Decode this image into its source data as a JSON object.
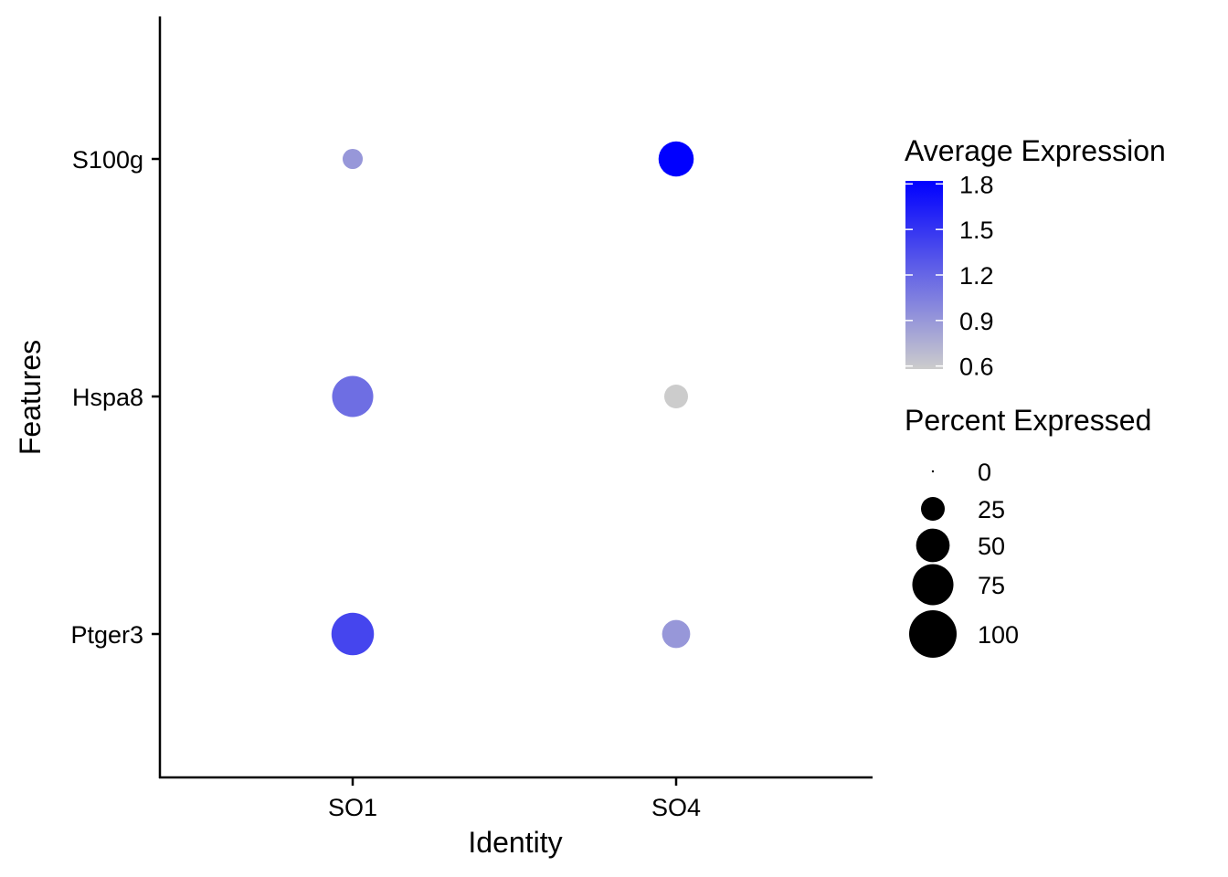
{
  "chart_data": {
    "type": "dotplot",
    "xlabel": "Identity",
    "ylabel": "Features",
    "x_categories": [
      "SO1",
      "SO4"
    ],
    "y_categories": [
      "S100g",
      "Hspa8",
      "Ptger3"
    ],
    "points": [
      {
        "feature": "S100g",
        "identity": "SO1",
        "avg_exp": 0.9,
        "pct_exp": 18
      },
      {
        "feature": "S100g",
        "identity": "SO4",
        "avg_exp": 1.82,
        "pct_exp": 55
      },
      {
        "feature": "Hspa8",
        "identity": "SO1",
        "avg_exp": 1.15,
        "pct_exp": 75
      },
      {
        "feature": "Hspa8",
        "identity": "SO4",
        "avg_exp": 0.58,
        "pct_exp": 25
      },
      {
        "feature": "Ptger3",
        "identity": "SO1",
        "avg_exp": 1.4,
        "pct_exp": 80
      },
      {
        "feature": "Ptger3",
        "identity": "SO4",
        "avg_exp": 0.9,
        "pct_exp": 35
      }
    ],
    "color_legend": {
      "title": "Average Expression",
      "low_color": "#cccccc",
      "high_color": "#0000ff",
      "range": [
        0.58,
        1.82
      ],
      "ticks": [
        "1.8",
        "1.5",
        "1.2",
        "0.9",
        "0.6"
      ]
    },
    "size_legend": {
      "title": "Percent Expressed",
      "entries": [
        {
          "label": "0",
          "value": 0
        },
        {
          "label": "25",
          "value": 25
        },
        {
          "label": "50",
          "value": 50
        },
        {
          "label": "75",
          "value": 75
        },
        {
          "label": "100",
          "value": 100
        }
      ]
    }
  }
}
